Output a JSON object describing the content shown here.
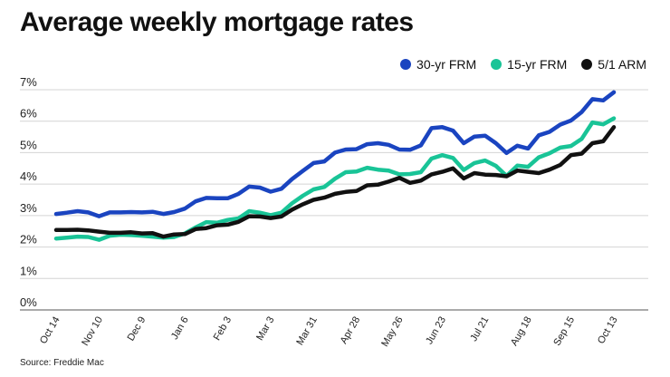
{
  "title": "Average weekly mortgage rates",
  "source": "Source: Freddie Mac",
  "chart_data": {
    "type": "line",
    "title": "Average weekly mortgage rates",
    "xlabel": "",
    "ylabel": "",
    "ylim": [
      0,
      7
    ],
    "yticks": [
      "0%",
      "1%",
      "2%",
      "3%",
      "4%",
      "5%",
      "6%",
      "7%"
    ],
    "grid": "horizontal",
    "legend": "top-right",
    "x_ticks": [
      "Oct 14",
      "Nov 10",
      "Dec 9",
      "Jan 6",
      "Feb 3",
      "Mar 3",
      "Mar 31",
      "Apr 28",
      "May 26",
      "Jun 23",
      "Jul 21",
      "Aug 18",
      "Sep 15",
      "Oct 13"
    ],
    "x_tick_index": [
      0,
      4,
      8,
      12,
      16,
      20,
      24,
      28,
      32,
      36,
      40,
      44,
      48,
      52
    ],
    "series": [
      {
        "name": "30-yr FRM",
        "color": "#1a44c0",
        "values": [
          3.05,
          3.09,
          3.14,
          3.1,
          2.98,
          3.1,
          3.1,
          3.11,
          3.1,
          3.12,
          3.05,
          3.11,
          3.22,
          3.45,
          3.56,
          3.55,
          3.55,
          3.69,
          3.92,
          3.89,
          3.76,
          3.85,
          4.16,
          4.42,
          4.67,
          4.72,
          5.0,
          5.1,
          5.11,
          5.27,
          5.3,
          5.25,
          5.1,
          5.09,
          5.23,
          5.78,
          5.81,
          5.7,
          5.3,
          5.51,
          5.54,
          5.3,
          4.99,
          5.22,
          5.13,
          5.55,
          5.66,
          5.89,
          6.02,
          6.29,
          6.7,
          6.66,
          6.92
        ]
      },
      {
        "name": "15-yr FRM",
        "color": "#19c497",
        "values": [
          2.27,
          2.3,
          2.33,
          2.32,
          2.23,
          2.36,
          2.39,
          2.38,
          2.36,
          2.33,
          2.3,
          2.32,
          2.43,
          2.62,
          2.79,
          2.77,
          2.86,
          2.91,
          3.14,
          3.09,
          3.01,
          3.09,
          3.39,
          3.63,
          3.83,
          3.91,
          4.17,
          4.38,
          4.4,
          4.52,
          4.46,
          4.43,
          4.31,
          4.32,
          4.38,
          4.81,
          4.92,
          4.83,
          4.45,
          4.67,
          4.75,
          4.58,
          4.26,
          4.59,
          4.55,
          4.85,
          4.98,
          5.16,
          5.21,
          5.44,
          5.96,
          5.9,
          6.09
        ]
      },
      {
        "name": "5/1 ARM",
        "color": "#111111",
        "values": [
          2.54,
          2.54,
          2.55,
          2.53,
          2.49,
          2.45,
          2.45,
          2.47,
          2.43,
          2.44,
          2.33,
          2.4,
          2.41,
          2.57,
          2.6,
          2.69,
          2.71,
          2.8,
          2.98,
          2.97,
          2.92,
          2.97,
          3.19,
          3.36,
          3.5,
          3.57,
          3.69,
          3.75,
          3.78,
          3.96,
          3.98,
          4.08,
          4.2,
          4.04,
          4.11,
          4.31,
          4.39,
          4.5,
          4.18,
          4.35,
          4.3,
          4.29,
          4.25,
          4.43,
          4.39,
          4.35,
          4.46,
          4.61,
          4.92,
          4.97,
          5.3,
          5.36,
          5.81
        ]
      }
    ]
  }
}
